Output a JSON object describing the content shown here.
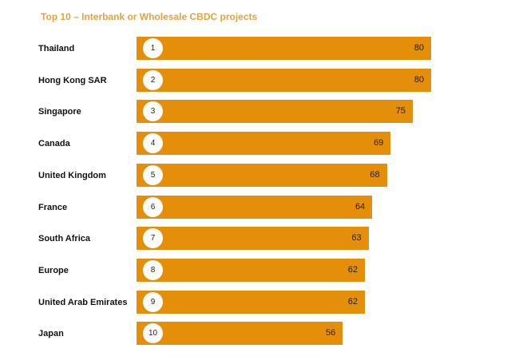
{
  "chart_data": {
    "type": "bar",
    "orientation": "horizontal",
    "title": "Top 10 – Interbank or Wholesale CBDC projects",
    "categories": [
      "Thailand",
      "Hong Kong SAR",
      "Singapore",
      "Canada",
      "United Kingdom",
      "France",
      "South Africa",
      "Europe",
      "United Arab Emirates",
      "Japan"
    ],
    "ranks": [
      "1",
      "2",
      "3",
      "4",
      "5",
      "6",
      "7",
      "8",
      "9",
      "10"
    ],
    "values": [
      80,
      80,
      75,
      69,
      68,
      64,
      63,
      62,
      62,
      56
    ],
    "xlim": [
      0,
      80
    ],
    "grid": false,
    "bar_color": "#e58e0a",
    "title_color": "#e3a23a"
  }
}
